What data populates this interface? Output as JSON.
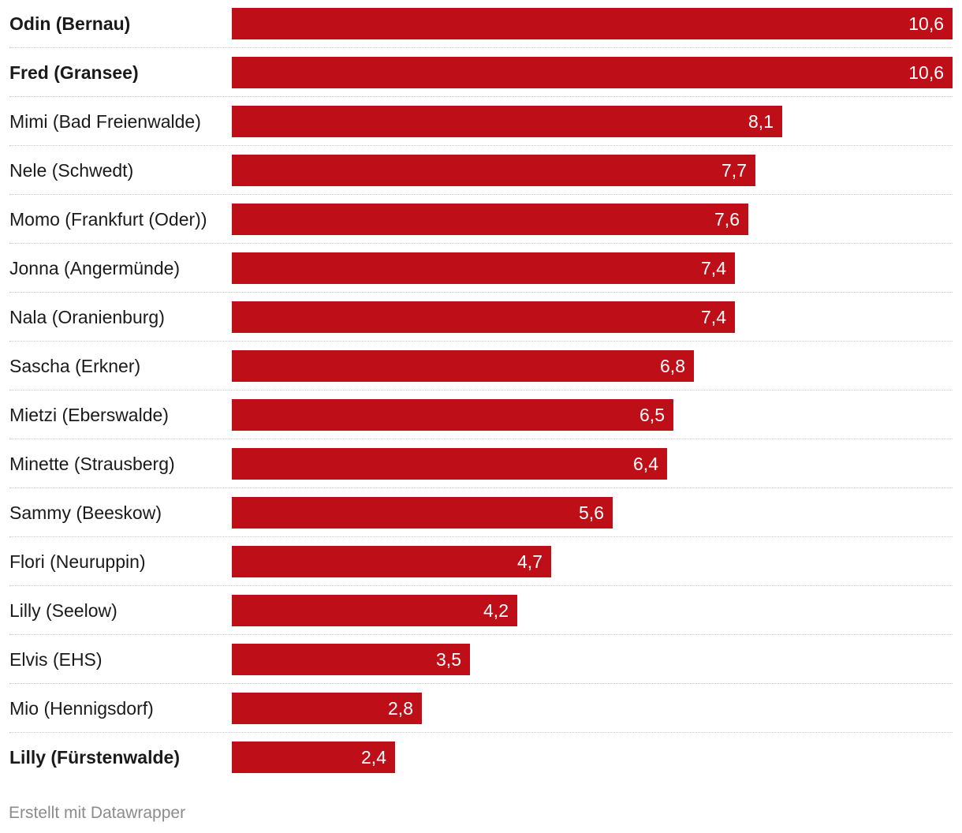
{
  "chart_data": {
    "type": "bar",
    "orientation": "horizontal",
    "bar_color": "#be0f18",
    "categories": [
      "Odin (Bernau)",
      "Fred (Gransee)",
      "Mimi (Bad Freienwalde)",
      "Nele (Schwedt)",
      "Momo (Frankfurt (Oder))",
      "Jonna (Angermünde)",
      "Nala (Oranienburg)",
      "Sascha (Erkner)",
      "Mietzi (Eberswalde)",
      "Minette (Strausberg)",
      "Sammy (Beeskow)",
      "Flori (Neuruppin)",
      "Lilly (Seelow)",
      "Elvis (EHS)",
      "Mio (Hennigsdorf)",
      "Lilly (Fürstenwalde)"
    ],
    "values": [
      10.6,
      10.6,
      8.1,
      7.7,
      7.6,
      7.4,
      7.4,
      6.8,
      6.5,
      6.4,
      5.6,
      4.7,
      4.2,
      3.5,
      2.8,
      2.4
    ],
    "value_labels": [
      "10,6",
      "10,6",
      "8,1",
      "7,7",
      "7,6",
      "7,4",
      "7,4",
      "6,8",
      "6,5",
      "6,4",
      "5,6",
      "4,7",
      "4,2",
      "3,5",
      "2,8",
      "2,4"
    ],
    "bold_categories": [
      "Odin (Bernau)",
      "Fred (Gransee)",
      "Lilly (Fürstenwalde)"
    ],
    "xlim": [
      0,
      10.6
    ],
    "title": "",
    "xlabel": "",
    "ylabel": ""
  },
  "footer": {
    "credit": "Erstellt mit Datawrapper"
  }
}
